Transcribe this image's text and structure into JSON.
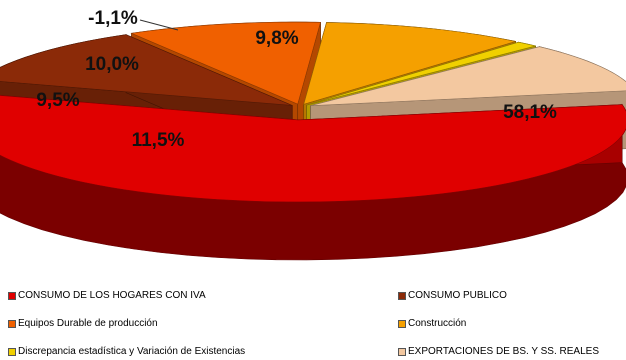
{
  "chart_data": {
    "type": "pie",
    "style": "3d-exploded",
    "slices": [
      {
        "label": "CONSUMO DE LOS HOGARES CON IVA",
        "value": 58.1,
        "display": "58,1%",
        "color": "#e00000"
      },
      {
        "label": "CONSUMO PUBLICO",
        "value": 11.5,
        "display": "11,5%",
        "color": "#8b2a08"
      },
      {
        "label": "Equipos Durable de producción",
        "value": 9.5,
        "display": "9,5%",
        "color": "#f06000"
      },
      {
        "label": "Construcción",
        "value": 10.0,
        "display": "10,0%",
        "color": "#f5a000"
      },
      {
        "label": "Discrepancia estadística y Variación de Existencias",
        "value": -1.1,
        "display": "-1,1%",
        "color": "#f0d000"
      },
      {
        "label": "EXPORTACIONES DE BS. Y SS. REALES",
        "value": 9.8,
        "display": "9,8%",
        "color": "#f3c8a0"
      }
    ],
    "legend_position": "bottom"
  }
}
